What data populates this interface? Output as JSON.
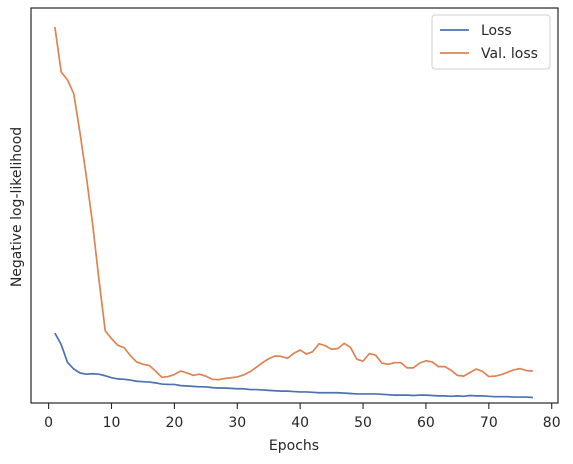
{
  "chart_data": {
    "type": "line",
    "title": "",
    "xlabel": "Epochs",
    "ylabel": "Negative log-likelihood",
    "xlim": [
      -2.8,
      81
    ],
    "ylim": [
      0,
      1
    ],
    "xticks": [
      0,
      10,
      20,
      30,
      40,
      50,
      60,
      70,
      80
    ],
    "xtick_labels": [
      "0",
      "10",
      "20",
      "30",
      "40",
      "50",
      "60",
      "70",
      "80"
    ],
    "grid": false,
    "legend_position": "top-right",
    "series": [
      {
        "name": "Loss",
        "color": "#4c72b0",
        "x": [
          1,
          2,
          3,
          4,
          5,
          6,
          7,
          8,
          9,
          10,
          11,
          12,
          13,
          14,
          15,
          16,
          17,
          18,
          19,
          20,
          21,
          22,
          23,
          24,
          25,
          26,
          27,
          28,
          29,
          30,
          31,
          32,
          33,
          34,
          35,
          36,
          37,
          38,
          39,
          40,
          41,
          42,
          43,
          44,
          45,
          46,
          47,
          48,
          49,
          50,
          51,
          52,
          53,
          54,
          55,
          56,
          57,
          58,
          59,
          60,
          61,
          62,
          63,
          64,
          65,
          66,
          67,
          68,
          69,
          70,
          71,
          72,
          73,
          74,
          75,
          76,
          77
        ],
        "values": [
          0.177,
          0.148,
          0.103,
          0.086,
          0.076,
          0.073,
          0.074,
          0.073,
          0.069,
          0.064,
          0.061,
          0.06,
          0.058,
          0.055,
          0.054,
          0.053,
          0.051,
          0.048,
          0.047,
          0.047,
          0.044,
          0.043,
          0.042,
          0.041,
          0.041,
          0.039,
          0.038,
          0.038,
          0.037,
          0.036,
          0.036,
          0.034,
          0.034,
          0.033,
          0.032,
          0.031,
          0.03,
          0.03,
          0.029,
          0.028,
          0.028,
          0.027,
          0.026,
          0.026,
          0.026,
          0.026,
          0.025,
          0.024,
          0.023,
          0.023,
          0.023,
          0.023,
          0.022,
          0.021,
          0.02,
          0.02,
          0.02,
          0.019,
          0.02,
          0.02,
          0.019,
          0.018,
          0.018,
          0.017,
          0.018,
          0.017,
          0.019,
          0.018,
          0.018,
          0.017,
          0.016,
          0.016,
          0.016,
          0.015,
          0.015,
          0.015,
          0.014
        ]
      },
      {
        "name": "Val. loss",
        "color": "#dd8452",
        "x": [
          1,
          2,
          3,
          4,
          5,
          6,
          7,
          8,
          9,
          10,
          11,
          12,
          13,
          14,
          15,
          16,
          17,
          18,
          19,
          20,
          21,
          22,
          23,
          24,
          25,
          26,
          27,
          28,
          29,
          30,
          31,
          32,
          33,
          34,
          35,
          36,
          37,
          38,
          39,
          40,
          41,
          42,
          43,
          44,
          45,
          46,
          47,
          48,
          49,
          50,
          51,
          52,
          53,
          54,
          55,
          56,
          57,
          58,
          59,
          60,
          61,
          62,
          63,
          64,
          65,
          66,
          67,
          68,
          69,
          70,
          71,
          72,
          73,
          74,
          75,
          76,
          77
        ],
        "values": [
          0.952,
          0.838,
          0.818,
          0.783,
          0.683,
          0.573,
          0.453,
          0.313,
          0.183,
          0.163,
          0.146,
          0.14,
          0.12,
          0.104,
          0.098,
          0.095,
          0.081,
          0.065,
          0.067,
          0.072,
          0.081,
          0.076,
          0.07,
          0.073,
          0.068,
          0.06,
          0.059,
          0.062,
          0.064,
          0.066,
          0.071,
          0.079,
          0.09,
          0.102,
          0.112,
          0.119,
          0.118,
          0.113,
          0.126,
          0.134,
          0.124,
          0.13,
          0.15,
          0.145,
          0.136,
          0.138,
          0.151,
          0.141,
          0.111,
          0.106,
          0.125,
          0.121,
          0.101,
          0.098,
          0.102,
          0.102,
          0.089,
          0.089,
          0.101,
          0.107,
          0.104,
          0.092,
          0.092,
          0.083,
          0.07,
          0.068,
          0.077,
          0.086,
          0.08,
          0.067,
          0.068,
          0.072,
          0.078,
          0.084,
          0.087,
          0.082,
          0.081
        ]
      }
    ]
  }
}
